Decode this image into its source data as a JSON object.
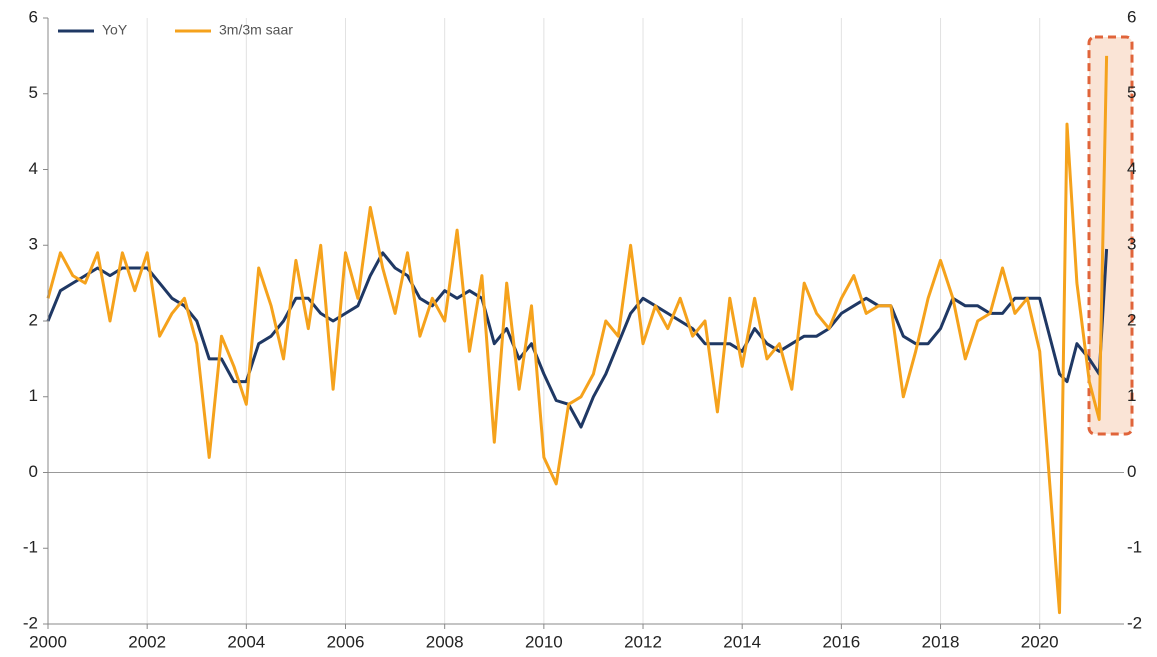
{
  "chart_data": {
    "type": "line",
    "x": [
      2000.0,
      2000.25,
      2000.5,
      2000.75,
      2001.0,
      2001.25,
      2001.5,
      2001.75,
      2002.0,
      2002.25,
      2002.5,
      2002.75,
      2003.0,
      2003.25,
      2003.5,
      2003.75,
      2004.0,
      2004.25,
      2004.5,
      2004.75,
      2005.0,
      2005.25,
      2005.5,
      2005.75,
      2006.0,
      2006.25,
      2006.5,
      2006.75,
      2007.0,
      2007.25,
      2007.5,
      2007.75,
      2008.0,
      2008.25,
      2008.5,
      2008.75,
      2009.0,
      2009.25,
      2009.5,
      2009.75,
      2010.0,
      2010.25,
      2010.5,
      2010.75,
      2011.0,
      2011.25,
      2011.5,
      2011.75,
      2012.0,
      2012.25,
      2012.5,
      2012.75,
      2013.0,
      2013.25,
      2013.5,
      2013.75,
      2014.0,
      2014.25,
      2014.5,
      2014.75,
      2015.0,
      2015.25,
      2015.5,
      2015.75,
      2016.0,
      2016.25,
      2016.5,
      2016.75,
      2017.0,
      2017.25,
      2017.5,
      2017.75,
      2018.0,
      2018.25,
      2018.5,
      2018.75,
      2019.0,
      2019.25,
      2019.5,
      2019.75,
      2020.0,
      2020.4,
      2020.55,
      2020.75,
      2021.0,
      2021.2,
      2021.35
    ],
    "series": [
      {
        "name": "YoY",
        "color": "#1f3864",
        "values": [
          2.0,
          2.4,
          2.5,
          2.6,
          2.7,
          2.6,
          2.7,
          2.7,
          2.7,
          2.5,
          2.3,
          2.2,
          2.0,
          1.5,
          1.5,
          1.2,
          1.2,
          1.7,
          1.8,
          2.0,
          2.3,
          2.3,
          2.1,
          2.0,
          2.1,
          2.2,
          2.6,
          2.9,
          2.7,
          2.6,
          2.3,
          2.2,
          2.4,
          2.3,
          2.4,
          2.3,
          1.7,
          1.9,
          1.5,
          1.7,
          1.3,
          0.95,
          0.9,
          0.6,
          1.0,
          1.3,
          1.7,
          2.1,
          2.3,
          2.2,
          2.1,
          2.0,
          1.9,
          1.7,
          1.7,
          1.7,
          1.6,
          1.9,
          1.7,
          1.6,
          1.7,
          1.8,
          1.8,
          1.9,
          2.1,
          2.2,
          2.3,
          2.2,
          2.2,
          1.8,
          1.7,
          1.7,
          1.9,
          2.3,
          2.2,
          2.2,
          2.1,
          2.1,
          2.3,
          2.3,
          2.3,
          1.3,
          1.2,
          1.7,
          1.5,
          1.3,
          2.95
        ]
      },
      {
        "name": "3m/3m saar",
        "color": "#f5a21c",
        "values": [
          2.3,
          2.9,
          2.6,
          2.5,
          2.9,
          2.0,
          2.9,
          2.4,
          2.9,
          1.8,
          2.1,
          2.3,
          1.7,
          0.2,
          1.8,
          1.4,
          0.9,
          2.7,
          2.2,
          1.5,
          2.8,
          1.9,
          3.0,
          1.1,
          2.9,
          2.3,
          3.5,
          2.7,
          2.1,
          2.9,
          1.8,
          2.3,
          2.0,
          3.2,
          1.6,
          2.6,
          0.4,
          2.5,
          1.1,
          2.2,
          0.2,
          -0.15,
          0.9,
          1.0,
          1.3,
          2.0,
          1.8,
          3.0,
          1.7,
          2.2,
          1.9,
          2.3,
          1.8,
          2.0,
          0.8,
          2.3,
          1.4,
          2.3,
          1.5,
          1.7,
          1.1,
          2.5,
          2.1,
          1.9,
          2.3,
          2.6,
          2.1,
          2.2,
          2.2,
          1.0,
          1.6,
          2.3,
          2.8,
          2.3,
          1.5,
          2.0,
          2.1,
          2.7,
          2.1,
          2.3,
          1.6,
          -1.85,
          4.6,
          2.5,
          1.2,
          0.7,
          5.5
        ]
      }
    ],
    "xlim": [
      2000,
      2021.7
    ],
    "xticks": [
      2000,
      2002,
      2004,
      2006,
      2008,
      2010,
      2012,
      2014,
      2016,
      2018,
      2020
    ],
    "ylim": [
      -2,
      6
    ],
    "yticks": [
      -2,
      -1,
      0,
      1,
      2,
      3,
      4,
      5,
      6
    ],
    "grid": "x",
    "legend": "top-left"
  }
}
